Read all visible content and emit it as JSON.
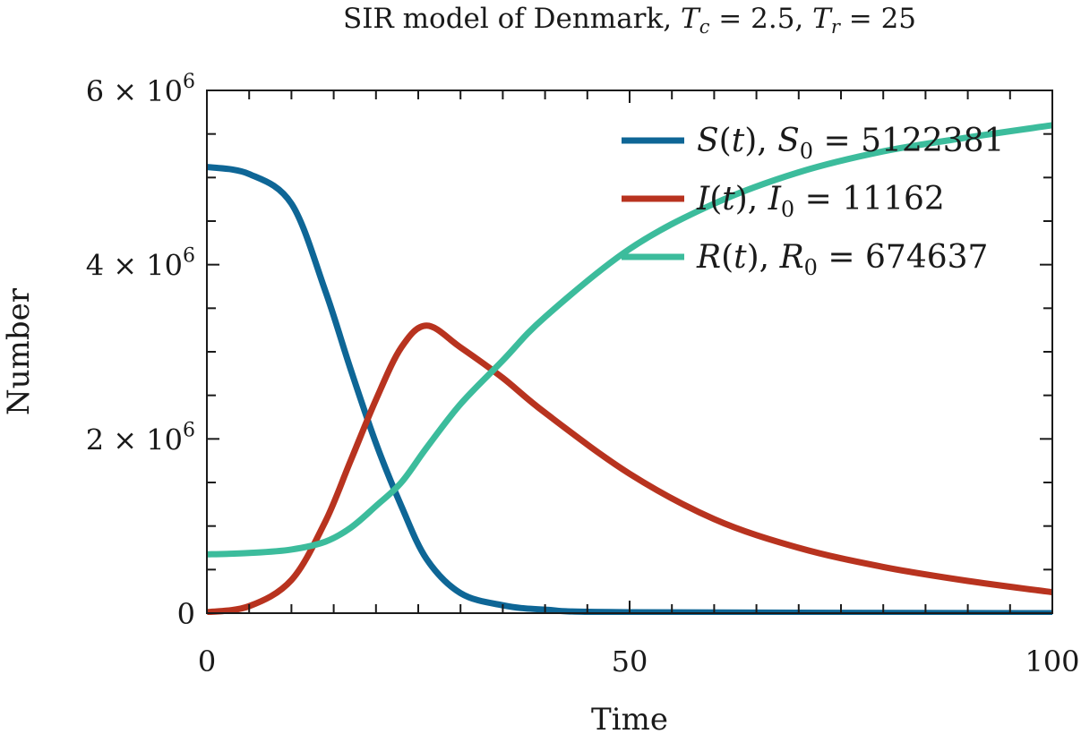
{
  "chart_data": {
    "type": "line",
    "title": {
      "lead": "SIR model of Denmark, ",
      "param1_symbol": "T",
      "param1_sub": "c",
      "param1_rest": " = 2.5, ",
      "param2_symbol": "T",
      "param2_sub": "r",
      "param2_rest": " = 25"
    },
    "xlabel": "Time",
    "ylabel": "Number",
    "xlim": [
      0,
      100
    ],
    "ylim": [
      0,
      6000000
    ],
    "xticks": [
      {
        "value": 0,
        "label": "0"
      },
      {
        "value": 50,
        "label": "50"
      },
      {
        "value": 100,
        "label": "100"
      }
    ],
    "yticks": [
      {
        "value": 0,
        "mantissa": "0",
        "exp": ""
      },
      {
        "value": 2000000,
        "mantissa": "2 × 10",
        "exp": "6"
      },
      {
        "value": 4000000,
        "mantissa": "4 × 10",
        "exp": "6"
      },
      {
        "value": 6000000,
        "mantissa": "6 × 10",
        "exp": "6"
      }
    ],
    "x_minor_step": 5,
    "y_minor_step": 500000,
    "grid": false,
    "legend_position": "top-right",
    "params": {
      "Tc": 2.5,
      "Tr": 25
    },
    "series": [
      {
        "name": "S(t), S0 = 5122381",
        "fn": "S",
        "var": "S",
        "sub": "0",
        "label_value": "5122381",
        "color": "#0e6696",
        "x": [
          0,
          5,
          10,
          14,
          17,
          20,
          23,
          26,
          30,
          35,
          40,
          50,
          100
        ],
        "y": [
          5122381,
          5040000,
          4700000,
          3700000,
          2800000,
          1950000,
          1230000,
          620000,
          230000,
          90000,
          40000,
          10000,
          0
        ]
      },
      {
        "name": "I(t), I0 = 11162",
        "fn": "I",
        "var": "I",
        "sub": "0",
        "label_value": "11162",
        "color": "#b8331f",
        "x": [
          0,
          5,
          10,
          14,
          17,
          20,
          23,
          26,
          30,
          35,
          40,
          50,
          60,
          70,
          80,
          90,
          100
        ],
        "y": [
          11162,
          80000,
          380000,
          1050000,
          1750000,
          2450000,
          3050000,
          3300000,
          3050000,
          2700000,
          2300000,
          1600000,
          1080000,
          750000,
          530000,
          370000,
          240000
        ]
      },
      {
        "name": "R(t), R0 = 674637",
        "fn": "R",
        "var": "R",
        "sub": "0",
        "label_value": "674637",
        "color": "#3cbc9c",
        "x": [
          0,
          5,
          10,
          14,
          17,
          20,
          23,
          26,
          30,
          35,
          40,
          50,
          60,
          70,
          80,
          90,
          100
        ],
        "y": [
          674637,
          690000,
          730000,
          820000,
          980000,
          1230000,
          1500000,
          1900000,
          2400000,
          2900000,
          3400000,
          4180000,
          4700000,
          5060000,
          5300000,
          5460000,
          5600000
        ]
      }
    ]
  }
}
